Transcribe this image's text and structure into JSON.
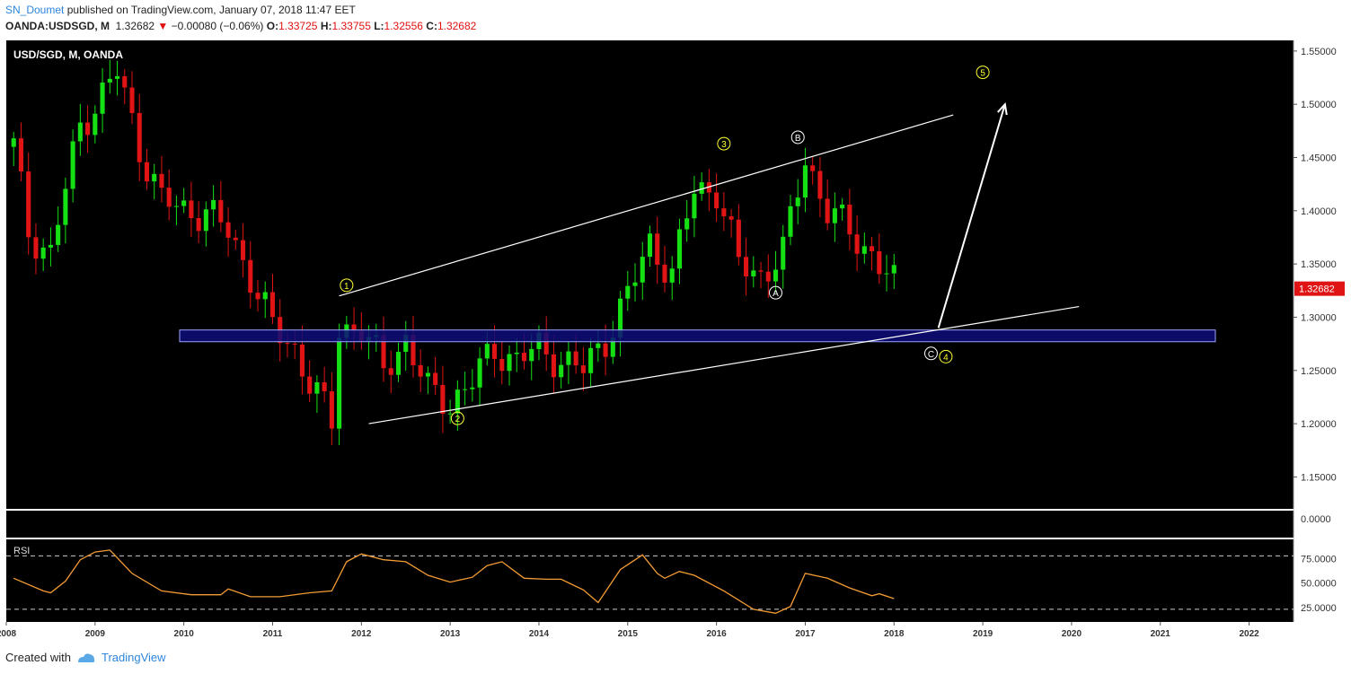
{
  "header": {
    "author": "SN_Doumet",
    "published": "published on TradingView.com, January 07, 2018 11:47 EET",
    "symbol": "OANDA:USDSGD, M",
    "last": "1.32682",
    "change_arrow": "▼",
    "change": "−0.00080 (−0.06%)",
    "o_label": "O:",
    "o": "1.33725",
    "h_label": "H:",
    "h": "1.33755",
    "l_label": "L:",
    "l": "1.32556",
    "c_label": "C:",
    "c": "1.32682"
  },
  "footer": {
    "created_with": "Created with",
    "brand": "TradingView"
  },
  "colors": {
    "bg": "#000000",
    "up": "#14e014",
    "down": "#e01414",
    "rsi": "#f39c34",
    "zone_fill": "#0e0e7a",
    "zone_stroke": "#9aa4ff",
    "wave_label": "#ffff33",
    "price_badge": "#e01414"
  },
  "chart_data": {
    "type": "candlestick",
    "title": "USD/SGD, M, OANDA",
    "x_range": [
      "2008-01",
      "2022-06"
    ],
    "y_range": [
      1.12,
      1.56
    ],
    "xticks": [
      "2008",
      "2009",
      "2010",
      "2011",
      "2012",
      "2013",
      "2014",
      "2015",
      "2016",
      "2017",
      "2018",
      "2019",
      "2020",
      "2021",
      "2022"
    ],
    "yticks": [
      "1.55000",
      "1.50000",
      "1.45000",
      "1.40000",
      "1.35000",
      "1.30000",
      "1.25000",
      "1.20000",
      "1.15000"
    ],
    "last_price": "1.32682",
    "ohlc_anchors": [
      [
        "2008-01",
        1.46
      ],
      [
        "2008-03",
        1.38
      ],
      [
        "2008-06",
        1.36
      ],
      [
        "2008-08",
        1.42
      ],
      [
        "2008-10",
        1.48
      ],
      [
        "2009-01",
        1.51
      ],
      [
        "2009-03",
        1.53
      ],
      [
        "2009-06",
        1.46
      ],
      [
        "2009-09",
        1.41
      ],
      [
        "2009-12",
        1.4
      ],
      [
        "2010-03",
        1.4
      ],
      [
        "2010-06",
        1.38
      ],
      [
        "2010-09",
        1.34
      ],
      [
        "2010-12",
        1.29
      ],
      [
        "2011-03",
        1.27
      ],
      [
        "2011-05",
        1.24
      ],
      [
        "2011-08",
        1.2
      ],
      [
        "2011-09",
        1.29
      ],
      [
        "2011-12",
        1.29
      ],
      [
        "2012-03",
        1.25
      ],
      [
        "2012-06",
        1.28
      ],
      [
        "2012-09",
        1.23
      ],
      [
        "2012-12",
        1.22
      ],
      [
        "2013-03",
        1.24
      ],
      [
        "2013-06",
        1.27
      ],
      [
        "2013-09",
        1.26
      ],
      [
        "2013-12",
        1.27
      ],
      [
        "2014-03",
        1.26
      ],
      [
        "2014-06",
        1.25
      ],
      [
        "2014-09",
        1.28
      ],
      [
        "2014-12",
        1.32
      ],
      [
        "2015-03",
        1.37
      ],
      [
        "2015-06",
        1.34
      ],
      [
        "2015-09",
        1.42
      ],
      [
        "2015-12",
        1.42
      ],
      [
        "2016-03",
        1.35
      ],
      [
        "2016-06",
        1.34
      ],
      [
        "2016-09",
        1.36
      ],
      [
        "2016-12",
        1.45
      ],
      [
        "2017-03",
        1.4
      ],
      [
        "2017-06",
        1.38
      ],
      [
        "2017-09",
        1.36
      ],
      [
        "2017-12",
        1.33
      ]
    ],
    "annotations": {
      "zone": [
        1.277,
        1.288
      ],
      "channel_upper": [
        [
          "2011-09",
          1.32
        ],
        [
          "2018-08",
          1.49
        ]
      ],
      "channel_lower": [
        [
          "2012-01",
          1.2
        ],
        [
          "2020-01",
          1.31
        ]
      ],
      "projection_arrow": [
        [
          "2018-06",
          1.29
        ],
        [
          "2019-03",
          1.5
        ]
      ],
      "wave_labels": [
        {
          "t": "1",
          "x": "2011-10",
          "y": 1.33,
          "style": "yellow"
        },
        {
          "t": "2",
          "x": "2013-01",
          "y": 1.205,
          "style": "yellow"
        },
        {
          "t": "3",
          "x": "2016-01",
          "y": 1.463,
          "style": "yellow"
        },
        {
          "t": "4",
          "x": "2018-07",
          "y": 1.263,
          "style": "yellow"
        },
        {
          "t": "5",
          "x": "2019-00",
          "y": 1.53,
          "style": "yellow"
        },
        {
          "t": "A",
          "x": "2016-08",
          "y": 1.323,
          "style": "white"
        },
        {
          "t": "B",
          "x": "2016-11",
          "y": 1.469,
          "style": "white"
        },
        {
          "t": "C",
          "x": "2018-05",
          "y": 1.266,
          "style": "white"
        }
      ]
    },
    "volume_pane": {
      "ytick": "0.0000"
    },
    "rsi": {
      "label": "RSI",
      "yticks": [
        "75.0000",
        "50.0000",
        "25.0000"
      ],
      "overbought": 78,
      "oversold": 23,
      "values": [
        [
          "2008-01",
          55
        ],
        [
          "2008-05",
          42
        ],
        [
          "2008-06",
          40
        ],
        [
          "2008-08",
          52
        ],
        [
          "2008-10",
          74
        ],
        [
          "2008-12",
          82
        ],
        [
          "2009-02",
          84
        ],
        [
          "2009-05",
          60
        ],
        [
          "2009-09",
          42
        ],
        [
          "2010-01",
          38
        ],
        [
          "2010-05",
          38
        ],
        [
          "2010-06",
          44
        ],
        [
          "2010-09",
          36
        ],
        [
          "2011-01",
          36
        ],
        [
          "2011-05",
          40
        ],
        [
          "2011-08",
          42
        ],
        [
          "2011-10",
          72
        ],
        [
          "2011-12",
          80
        ],
        [
          "2012-03",
          74
        ],
        [
          "2012-06",
          72
        ],
        [
          "2012-09",
          58
        ],
        [
          "2012-12",
          51
        ],
        [
          "2013-03",
          56
        ],
        [
          "2013-05",
          68
        ],
        [
          "2013-07",
          72
        ],
        [
          "2013-10",
          55
        ],
        [
          "2014-01",
          54
        ],
        [
          "2014-03",
          54
        ],
        [
          "2014-06",
          43
        ],
        [
          "2014-08",
          30
        ],
        [
          "2014-11",
          64
        ],
        [
          "2015-02",
          79
        ],
        [
          "2015-04",
          60
        ],
        [
          "2015-05",
          55
        ],
        [
          "2015-07",
          62
        ],
        [
          "2015-09",
          58
        ],
        [
          "2016-01",
          42
        ],
        [
          "2016-05",
          23
        ],
        [
          "2016-08",
          19
        ],
        [
          "2016-10",
          26
        ],
        [
          "2016-12",
          60
        ],
        [
          "2017-03",
          55
        ],
        [
          "2017-06",
          45
        ],
        [
          "2017-09",
          37
        ],
        [
          "2017-10",
          39
        ],
        [
          "2017-12",
          34
        ]
      ]
    }
  }
}
